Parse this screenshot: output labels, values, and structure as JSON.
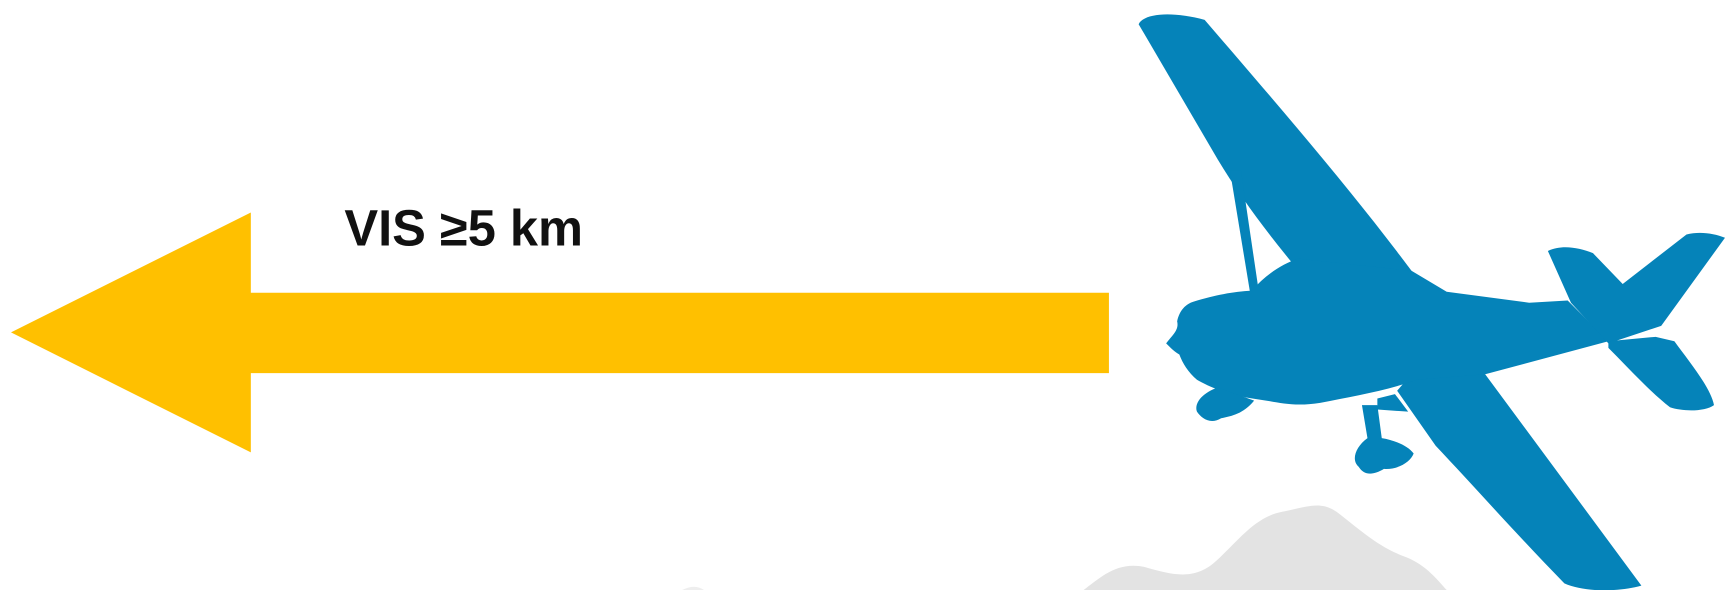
{
  "label": "VIS ≥5 km"
}
